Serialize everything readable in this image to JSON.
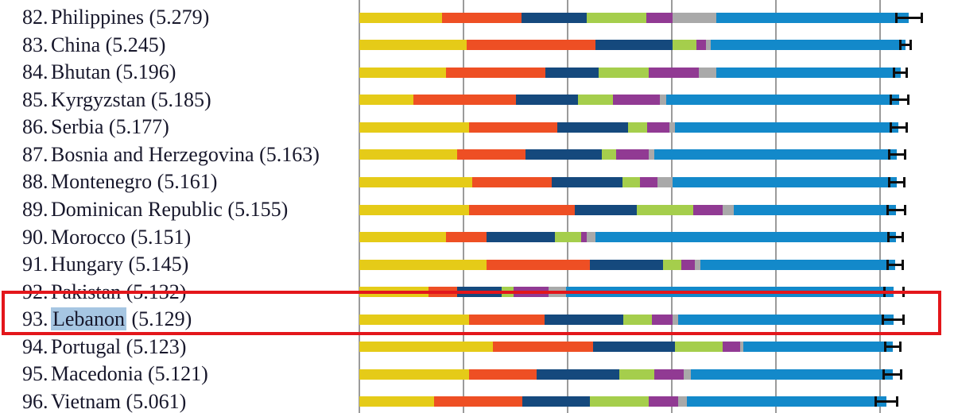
{
  "page": {
    "background": "#ffffff"
  },
  "chart_data": {
    "type": "bar",
    "subtype": "horizontal-stacked-with-error-bars",
    "orientation": "horizontal",
    "grid": "vertical-lines-on",
    "axis": {
      "points_per_gridline": 1,
      "n_gridlines": 6,
      "x_min_points": 0
    },
    "stack_order": [
      "yellow",
      "orange",
      "navy",
      "green",
      "purple",
      "gray",
      "lightblue"
    ],
    "stack_colors": {
      "yellow": "#e5cb18",
      "orange": "#ee4f24",
      "navy": "#15497d",
      "green": "#a5ce4c",
      "purple": "#913a93",
      "gray": "#a9a9a9",
      "lightblue": "#1389ca"
    },
    "whisker_color": "#0e0e0e",
    "gridline_color": "#9b9b9b",
    "rows": [
      {
        "rank_label": "82.",
        "country": "Philippines",
        "score": 5.279,
        "score_label": "(5.279)",
        "segments": [
          0.794,
          0.763,
          0.626,
          0.573,
          0.252,
          0.42,
          1.851
        ],
        "whisker_half": 0.12,
        "highlighted": false
      },
      {
        "rank_label": "83.",
        "country": "China",
        "score": 5.245,
        "score_label": "(5.245)",
        "segments": [
          1.031,
          1.237,
          0.74,
          0.229,
          0.092,
          0.046,
          1.87
        ],
        "whisker_half": 0.05,
        "highlighted": false
      },
      {
        "rank_label": "84.",
        "country": "Bhutan",
        "score": 5.196,
        "score_label": "(5.196)",
        "segments": [
          0.832,
          0.954,
          0.511,
          0.481,
          0.481,
          0.168,
          1.769
        ],
        "whisker_half": 0.06,
        "highlighted": false
      },
      {
        "rank_label": "85.",
        "country": "Kyrgyzstan",
        "score": 5.185,
        "score_label": "(5.185)",
        "segments": [
          0.519,
          0.985,
          0.595,
          0.336,
          0.45,
          0.061,
          2.239
        ],
        "whisker_half": 0.085,
        "highlighted": false
      },
      {
        "rank_label": "86.",
        "country": "Serbia",
        "score": 5.177,
        "score_label": "(5.177)",
        "segments": [
          1.053,
          0.847,
          0.679,
          0.183,
          0.214,
          0.053,
          2.148
        ],
        "whisker_half": 0.075,
        "highlighted": false
      },
      {
        "rank_label": "87.",
        "country": "Bosnia and Herzegovina",
        "score": 5.163,
        "score_label": "(5.163)",
        "segments": [
          0.939,
          0.656,
          0.733,
          0.137,
          0.313,
          0.053,
          2.332
        ],
        "whisker_half": 0.075,
        "highlighted": false
      },
      {
        "rank_label": "88.",
        "country": "Montenegro",
        "score": 5.161,
        "score_label": "(5.161)",
        "segments": [
          1.084,
          0.763,
          0.679,
          0.168,
          0.168,
          0.145,
          2.154
        ],
        "whisker_half": 0.075,
        "highlighted": false
      },
      {
        "rank_label": "89.",
        "country": "Dominican Republic",
        "score": 5.155,
        "score_label": "(5.155)",
        "segments": [
          1.053,
          1.015,
          0.595,
          0.542,
          0.282,
          0.107,
          1.561
        ],
        "whisker_half": 0.085,
        "highlighted": false
      },
      {
        "rank_label": "90.",
        "country": "Morocco",
        "score": 5.151,
        "score_label": "(5.151)",
        "segments": [
          0.832,
          0.389,
          0.656,
          0.252,
          0.053,
          0.084,
          2.885
        ],
        "whisker_half": 0.07,
        "highlighted": false
      },
      {
        "rank_label": "91.",
        "country": "Hungary",
        "score": 5.145,
        "score_label": "(5.145)",
        "segments": [
          1.221,
          0.992,
          0.702,
          0.176,
          0.13,
          0.053,
          1.871
        ],
        "whisker_half": 0.075,
        "highlighted": false
      },
      {
        "rank_label": "92.",
        "country": "Pakistan",
        "score": 5.132,
        "score_label": "(5.132)",
        "segments": [
          0.664,
          0.275,
          0.427,
          0.115,
          0.336,
          0.168,
          3.147
        ],
        "whisker_half": 0.09,
        "highlighted": false
      },
      {
        "rank_label": "93.",
        "country": "Lebanon",
        "score": 5.129,
        "score_label": "(5.129)",
        "segments": [
          1.053,
          0.725,
          0.756,
          0.275,
          0.198,
          0.053,
          2.069
        ],
        "whisker_half": 0.1,
        "highlighted": true
      },
      {
        "rank_label": "94.",
        "country": "Portugal",
        "score": 5.123,
        "score_label": "(5.123)",
        "segments": [
          1.282,
          0.962,
          0.786,
          0.458,
          0.168,
          0.031,
          1.436
        ],
        "whisker_half": 0.075,
        "highlighted": false
      },
      {
        "rank_label": "95.",
        "country": "Macedonia",
        "score": 5.121,
        "score_label": "(5.121)",
        "segments": [
          1.053,
          0.649,
          0.794,
          0.336,
          0.282,
          0.069,
          1.938
        ],
        "whisker_half": 0.085,
        "highlighted": false
      },
      {
        "rank_label": "96.",
        "country": "Vietnam",
        "score": 5.061,
        "score_label": "(5.061)",
        "segments": [
          0.718,
          0.847,
          0.649,
          0.565,
          0.282,
          0.084,
          1.916
        ],
        "whisker_half": 0.105,
        "highlighted": false
      }
    ]
  },
  "annotations": {
    "highlighted_row_country": "Lebanon",
    "highlight_box_color": "#e3161b",
    "country_text_highlight_color": "#a6c6e2",
    "text_color": "#17172b"
  }
}
